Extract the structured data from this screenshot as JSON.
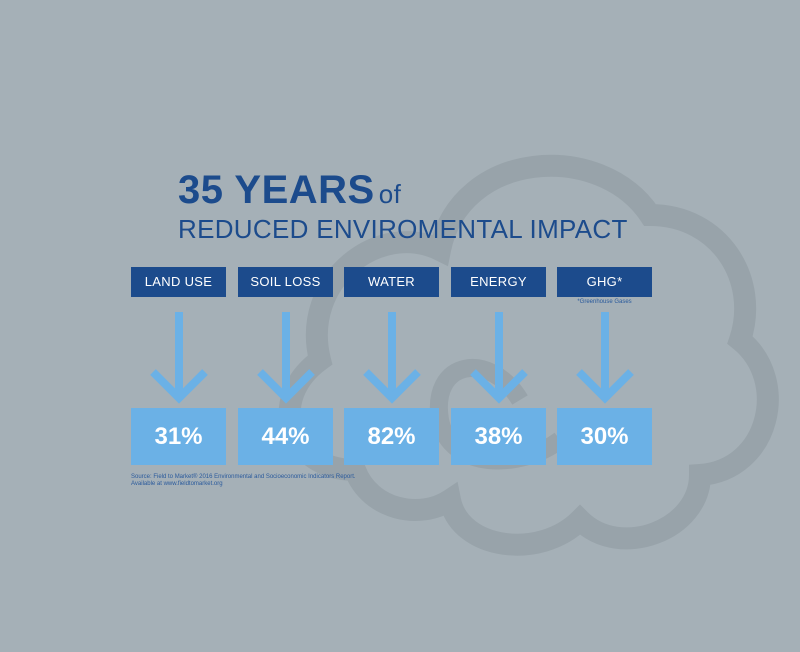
{
  "title": {
    "main": "35 YEARS",
    "of": "of",
    "subtitle": "REDUCED ENVIROMENTAL IMPACT"
  },
  "footnote": "*Greenhouse Gases",
  "source": {
    "line1": "Source: Field to Market® 2016 Environmental and Socioeconomic Indicators Report.",
    "line2": "Available at www.fieldtomarket.org"
  },
  "colors": {
    "background": "#a5b0b7",
    "label_box": "#1c4b8c",
    "value_box": "#6bb1e6",
    "arrow": "#6bb1e6",
    "title": "#1c4b8c"
  },
  "chart_data": {
    "type": "table",
    "categories": [
      "LAND USE",
      "SOIL LOSS",
      "WATER",
      "ENERGY",
      "GHG*"
    ],
    "value_labels": [
      "31%",
      "44%",
      "82%",
      "38%",
      "30%"
    ],
    "values": [
      31,
      44,
      82,
      38,
      30
    ],
    "title": "35 YEARS of",
    "subtitle": "REDUCED ENVIROMENTAL IMPACT"
  }
}
